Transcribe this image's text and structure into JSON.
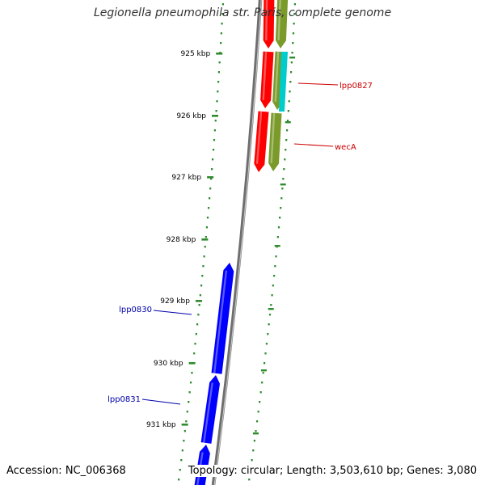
{
  "title": "Legionella pneumophila str. Paris, complete genome",
  "footer": {
    "accession": "Accession: NC_006368",
    "summary": "Topology: circular; Length: 3,503,610 bp; Genes: 3,080"
  },
  "colors": {
    "background": "#ffffff",
    "tick": "#2e8b2e",
    "backbone": "#8a8a8a",
    "forward_cds": "#ff0000",
    "forward_gene": "#7a9a2a",
    "forward_gene_highlight": "#00cccc",
    "reverse_cds": "#0000ff",
    "forward_label": "#cc0000",
    "reverse_label": "#0000aa"
  },
  "scale": {
    "unit": "kbp",
    "ticks": [
      {
        "value": 925,
        "label": "925 kbp"
      },
      {
        "value": 926,
        "label": "926 kbp"
      },
      {
        "value": 927,
        "label": "927 kbp"
      },
      {
        "value": 928,
        "label": "928 kbp"
      },
      {
        "value": 929,
        "label": "929 kbp"
      },
      {
        "value": 930,
        "label": "930 kbp"
      },
      {
        "value": 931,
        "label": "931 kbp"
      }
    ]
  },
  "gene_labels": [
    {
      "name": "lpp0827",
      "strand": "forward"
    },
    {
      "name": "wecA",
      "strand": "forward"
    },
    {
      "name": "lpp0830",
      "strand": "reverse"
    },
    {
      "name": "lpp0831",
      "strand": "reverse"
    }
  ]
}
